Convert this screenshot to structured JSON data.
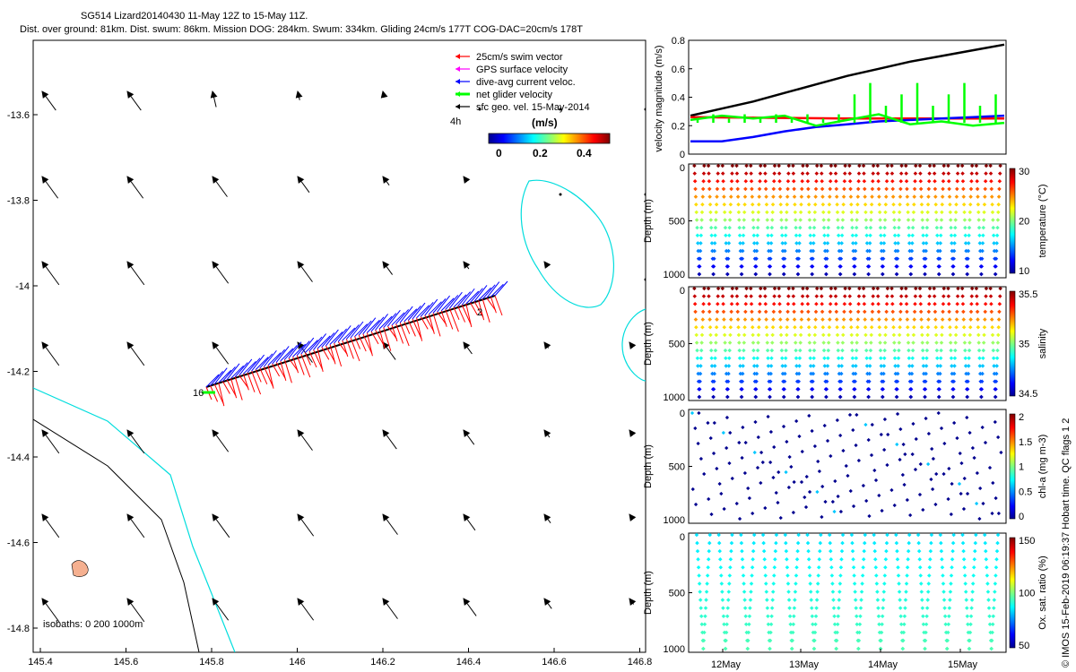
{
  "header": {
    "title": "SG514 Lizard20140430 11-May 12Z to 15-May 11Z.",
    "stats": "Dist. over ground: 81km. Dist. swum: 86km. Mission DOG: 284km. Swum: 334km. Gliding 24cm/s 177T COG-DAC=20cm/s 178T"
  },
  "map": {
    "x_ticks": [
      "145.4",
      "145.6",
      "145.8",
      "146",
      "146.2",
      "146.4",
      "146.6",
      "146.8"
    ],
    "y_ticks": [
      "-13.6",
      "-13.8",
      "-14",
      "-14.2",
      "-14.4",
      "-14.6",
      "-14.8"
    ],
    "legend": [
      {
        "label": "25cm/s swim vector",
        "color": "#ff0000"
      },
      {
        "label": "GPS surface velocity",
        "color": "#ff00ff"
      },
      {
        "label": "dive-avg current veloc.",
        "color": "#0000ff"
      },
      {
        "label": "net glider velocity",
        "color": "#00ff00"
      },
      {
        "label": "sfc geo. vel. 15-May-2014",
        "color": "#000000"
      }
    ],
    "colorbar": {
      "unit": "(m/s)",
      "ticks": [
        "0",
        "0.2",
        "0.4"
      ]
    },
    "labels": {
      "start_dive": "16",
      "end_dive": "2",
      "hours": "4h"
    },
    "isobaths_label": "isobaths: 0   200  1000m"
  },
  "chart_data": [
    {
      "type": "line",
      "title": "",
      "ylabel": "velocity magnitude (m/s)",
      "ylim": [
        0,
        0.8
      ],
      "y_ticks": [
        "0",
        "0.2",
        "0.4",
        "0.6",
        "0.8"
      ],
      "series": [
        {
          "name": "sfc geo. vel.",
          "color": "#000000",
          "x": [
            0,
            0.1,
            0.2,
            0.3,
            0.4,
            0.5,
            0.6,
            0.7,
            0.8,
            0.9,
            1
          ],
          "values": [
            0.27,
            0.32,
            0.37,
            0.43,
            0.49,
            0.55,
            0.6,
            0.65,
            0.69,
            0.73,
            0.77
          ]
        },
        {
          "name": "swim vector",
          "color": "#ff0000",
          "x": [
            0,
            0.5,
            1
          ],
          "values": [
            0.26,
            0.25,
            0.25
          ]
        },
        {
          "name": "dive-avg current",
          "color": "#0000ff",
          "x": [
            0,
            0.1,
            0.2,
            0.3,
            0.4,
            0.5,
            0.6,
            0.7,
            0.8,
            0.9,
            1
          ],
          "values": [
            0.09,
            0.09,
            0.12,
            0.16,
            0.19,
            0.21,
            0.23,
            0.24,
            0.25,
            0.26,
            0.27
          ]
        },
        {
          "name": "net glider velocity",
          "color": "#00ff00",
          "x": [
            0,
            0.1,
            0.2,
            0.3,
            0.4,
            0.5,
            0.6,
            0.7,
            0.8,
            0.9,
            1
          ],
          "values": [
            0.24,
            0.27,
            0.25,
            0.27,
            0.2,
            0.24,
            0.28,
            0.21,
            0.23,
            0.2,
            0.22
          ]
        }
      ]
    },
    {
      "type": "scatter",
      "ylabel": "Depth (m)",
      "clabel": "temperature (°C)",
      "y_ticks": [
        "0",
        "500",
        "1000"
      ],
      "c_ticks": [
        "30",
        "20",
        "10"
      ],
      "profiles": 22
    },
    {
      "type": "scatter",
      "ylabel": "Depth (m)",
      "clabel": "salinity",
      "y_ticks": [
        "0",
        "500",
        "1000"
      ],
      "c_ticks": [
        "35.5",
        "35",
        "34.5"
      ],
      "profiles": 22
    },
    {
      "type": "scatter",
      "ylabel": "Depth (m)",
      "clabel": "chl-a (mg m-3)",
      "y_ticks": [
        "0",
        "500",
        "1000"
      ],
      "c_ticks": [
        "2",
        "1.5",
        "1",
        "0.5",
        "0"
      ],
      "profiles": 22
    },
    {
      "type": "scatter",
      "ylabel": "Depth (m)",
      "clabel": "Ox. sat. ratio (%)",
      "y_ticks": [
        "0",
        "500",
        "1000"
      ],
      "c_ticks": [
        "150",
        "100",
        "50"
      ],
      "profiles": 14
    }
  ],
  "time_axis": [
    "12May",
    "13May",
    "14May",
    "15May"
  ],
  "footer": {
    "side_label": "© IMOS 15-Feb-2019 06:19:37 Hobart time. QC flags 1  2"
  }
}
